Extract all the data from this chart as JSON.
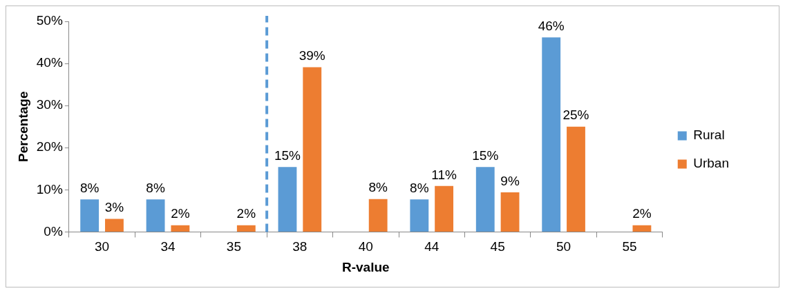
{
  "chart_data": {
    "type": "bar",
    "xlabel": "R-value",
    "ylabel": "Percentage",
    "categories": [
      "30",
      "34",
      "35",
      "38",
      "40",
      "44",
      "45",
      "50",
      "55"
    ],
    "series": [
      {
        "name": "Rural",
        "color": "#5b9bd5",
        "values": [
          7.7,
          7.7,
          null,
          15.4,
          null,
          7.7,
          15.4,
          46.2,
          null
        ],
        "value_labels": [
          "8%",
          "8%",
          null,
          "15%",
          null,
          "8%",
          "15%",
          "46%",
          null
        ]
      },
      {
        "name": "Urban",
        "color": "#ed7d31",
        "values": [
          3.1,
          1.6,
          1.6,
          39.1,
          7.8,
          10.9,
          9.4,
          25,
          1.6
        ],
        "value_labels": [
          "3%",
          "2%",
          "2%",
          "39%",
          "8%",
          "11%",
          "9%",
          "25%",
          "2%"
        ]
      }
    ],
    "ylim": [
      0,
      50
    ],
    "yticks": [
      {
        "value": 0,
        "label": "0%"
      },
      {
        "value": 10,
        "label": "10%"
      },
      {
        "value": 20,
        "label": "20%"
      },
      {
        "value": 30,
        "label": "30%"
      },
      {
        "value": 40,
        "label": "40%"
      },
      {
        "value": 50,
        "label": "50%"
      }
    ],
    "ref_lines": [
      {
        "axis": "x",
        "value": "38",
        "color": "#5b9bd5",
        "line_style": "dashed"
      }
    ],
    "grid": false,
    "legend": "right"
  }
}
